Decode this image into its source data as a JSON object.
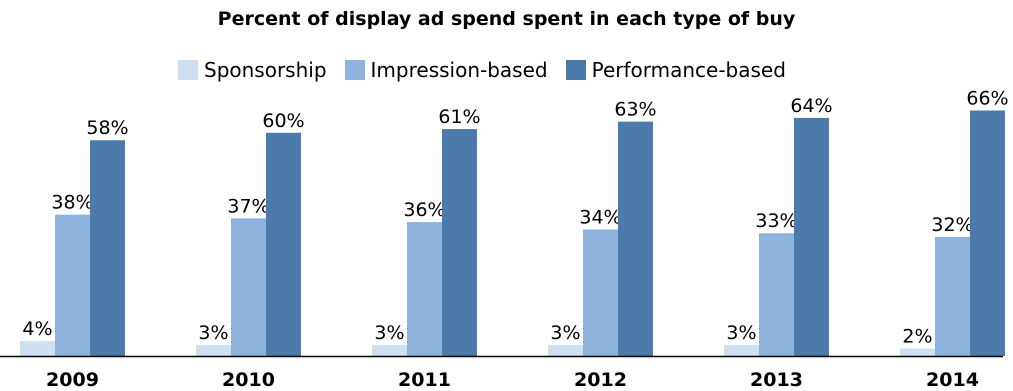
{
  "chart_data": {
    "type": "bar",
    "title": "Percent of display ad spend spent in each type of buy",
    "categories": [
      "2009",
      "2010",
      "2011",
      "2012",
      "2013",
      "2014"
    ],
    "series": [
      {
        "name": "Sponsorship",
        "values": [
          4,
          3,
          3,
          3,
          3,
          2
        ],
        "color": "#cfdff0",
        "data_labels": [
          "4%",
          "3%",
          "3%",
          "3%",
          "3%",
          "2%"
        ]
      },
      {
        "name": "Impression-based",
        "values": [
          38,
          37,
          36,
          34,
          33,
          32
        ],
        "color": "#8db4df",
        "data_labels": [
          "38%",
          "37%",
          "36%",
          "34%",
          "33%",
          "32%"
        ]
      },
      {
        "name": "Performance-based",
        "values": [
          58,
          60,
          61,
          63,
          64,
          66
        ],
        "color": "#4b7aab",
        "data_labels": [
          "58%",
          "60%",
          "61%",
          "63%",
          "64%",
          "66%"
        ]
      }
    ],
    "value_unit": "%",
    "ylim": [
      0,
      70
    ],
    "xlabel": "",
    "ylabel": "",
    "legend_position": "top",
    "grid": false
  }
}
